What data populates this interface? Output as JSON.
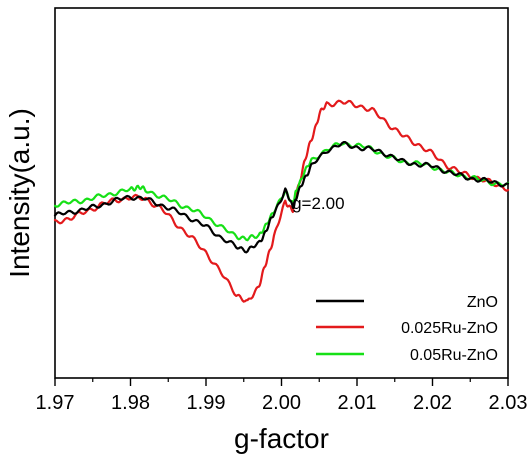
{
  "chart_data": {
    "type": "line",
    "title": "",
    "xlabel": "g-factor",
    "ylabel": "Intensity(a.u.)",
    "xlim": [
      1.97,
      2.03
    ],
    "ylim": [
      -1.45,
      1.35
    ],
    "xticks": [
      1.97,
      1.98,
      1.99,
      2.0,
      2.01,
      2.02,
      2.03
    ],
    "xtick_labels": [
      "1.97",
      "1.98",
      "1.99",
      "2.00",
      "2.01",
      "2.02",
      "2.03"
    ],
    "grid": false,
    "legend_position": "bottom-right",
    "annotations": [
      {
        "text": "g=2.00",
        "x": 2.0014,
        "y": -0.17
      }
    ],
    "series": [
      {
        "name": "ZnO",
        "color": "#000000",
        "points": [
          [
            1.97,
            -0.22
          ],
          [
            1.972,
            -0.2
          ],
          [
            1.974,
            -0.17
          ],
          [
            1.976,
            -0.14
          ],
          [
            1.978,
            -0.11
          ],
          [
            1.98,
            -0.08
          ],
          [
            1.982,
            -0.09
          ],
          [
            1.984,
            -0.14
          ],
          [
            1.986,
            -0.19
          ],
          [
            1.988,
            -0.24
          ],
          [
            1.99,
            -0.3
          ],
          [
            1.992,
            -0.39
          ],
          [
            1.994,
            -0.46
          ],
          [
            1.9955,
            -0.48
          ],
          [
            1.997,
            -0.43
          ],
          [
            1.998,
            -0.33
          ],
          [
            1.999,
            -0.21
          ],
          [
            2.0005,
            -0.03
          ],
          [
            2.0015,
            -0.16
          ],
          [
            2.002,
            -0.08
          ],
          [
            2.003,
            0.06
          ],
          [
            2.004,
            0.16
          ],
          [
            2.006,
            0.27
          ],
          [
            2.008,
            0.32
          ],
          [
            2.01,
            0.3
          ],
          [
            2.012,
            0.28
          ],
          [
            2.014,
            0.24
          ],
          [
            2.016,
            0.19
          ],
          [
            2.018,
            0.17
          ],
          [
            2.02,
            0.15
          ],
          [
            2.022,
            0.11
          ],
          [
            2.024,
            0.08
          ],
          [
            2.026,
            0.05
          ],
          [
            2.028,
            0.03
          ],
          [
            2.03,
            0.01
          ]
        ]
      },
      {
        "name": "0.025Ru-ZnO",
        "color": "#e31a1c",
        "points": [
          [
            1.97,
            -0.28
          ],
          [
            1.972,
            -0.24
          ],
          [
            1.974,
            -0.19
          ],
          [
            1.976,
            -0.14
          ],
          [
            1.978,
            -0.11
          ],
          [
            1.98,
            -0.08
          ],
          [
            1.982,
            -0.09
          ],
          [
            1.984,
            -0.17
          ],
          [
            1.986,
            -0.28
          ],
          [
            1.988,
            -0.38
          ],
          [
            1.99,
            -0.5
          ],
          [
            1.992,
            -0.66
          ],
          [
            1.994,
            -0.81
          ],
          [
            1.9955,
            -0.88
          ],
          [
            1.997,
            -0.75
          ],
          [
            1.998,
            -0.58
          ],
          [
            1.999,
            -0.38
          ],
          [
            2.0005,
            -0.12
          ],
          [
            2.0015,
            -0.17
          ],
          [
            2.002,
            -0.05
          ],
          [
            2.003,
            0.18
          ],
          [
            2.004,
            0.36
          ],
          [
            2.005,
            0.54
          ],
          [
            2.006,
            0.62
          ],
          [
            2.008,
            0.64
          ],
          [
            2.01,
            0.62
          ],
          [
            2.012,
            0.57
          ],
          [
            2.014,
            0.48
          ],
          [
            2.016,
            0.39
          ],
          [
            2.018,
            0.32
          ],
          [
            2.02,
            0.24
          ],
          [
            2.022,
            0.16
          ],
          [
            2.024,
            0.1
          ],
          [
            2.026,
            0.06
          ],
          [
            2.028,
            0.02
          ],
          [
            2.03,
            -0.01
          ]
        ]
      },
      {
        "name": "0.05Ru-ZnO",
        "color": "#16e016",
        "points": [
          [
            1.97,
            -0.14
          ],
          [
            1.972,
            -0.12
          ],
          [
            1.974,
            -0.1
          ],
          [
            1.976,
            -0.08
          ],
          [
            1.978,
            -0.05
          ],
          [
            1.98,
            -0.02
          ],
          [
            1.981,
            0.0
          ],
          [
            1.982,
            -0.03
          ],
          [
            1.984,
            -0.08
          ],
          [
            1.986,
            -0.12
          ],
          [
            1.988,
            -0.17
          ],
          [
            1.99,
            -0.23
          ],
          [
            1.992,
            -0.31
          ],
          [
            1.994,
            -0.37
          ],
          [
            1.9955,
            -0.4
          ],
          [
            1.997,
            -0.37
          ],
          [
            1.998,
            -0.3
          ],
          [
            1.999,
            -0.18
          ],
          [
            2.0005,
            -0.04
          ],
          [
            2.0015,
            -0.12
          ],
          [
            2.002,
            -0.03
          ],
          [
            2.003,
            0.11
          ],
          [
            2.004,
            0.19
          ],
          [
            2.006,
            0.28
          ],
          [
            2.008,
            0.33
          ],
          [
            2.01,
            0.31
          ],
          [
            2.012,
            0.28
          ],
          [
            2.014,
            0.23
          ],
          [
            2.016,
            0.19
          ],
          [
            2.018,
            0.17
          ],
          [
            2.02,
            0.15
          ],
          [
            2.022,
            0.11
          ],
          [
            2.024,
            0.08
          ],
          [
            2.026,
            0.05
          ],
          [
            2.028,
            0.03
          ],
          [
            2.03,
            0.01
          ]
        ]
      }
    ]
  }
}
